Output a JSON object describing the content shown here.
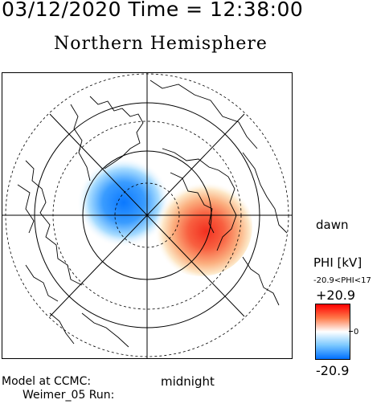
{
  "header": {
    "datetime": "03/12/2020 Time = 12:38:00",
    "title": "Northern Hemisphere"
  },
  "map": {
    "labels": {
      "dawn": "dawn",
      "midnight": "midnight"
    }
  },
  "colorbar": {
    "label": "PHI [kV]",
    "range_note": "-20.9<PHI<17",
    "max_label": "+20.9",
    "min_label": "-20.9",
    "zero_label": "0",
    "colors": {
      "max": "#ff0000",
      "mid": "#ffffff",
      "min": "#0070ff"
    }
  },
  "footer": {
    "model": "Model at CCMC:",
    "run": "Weimer_05 Run:"
  }
}
